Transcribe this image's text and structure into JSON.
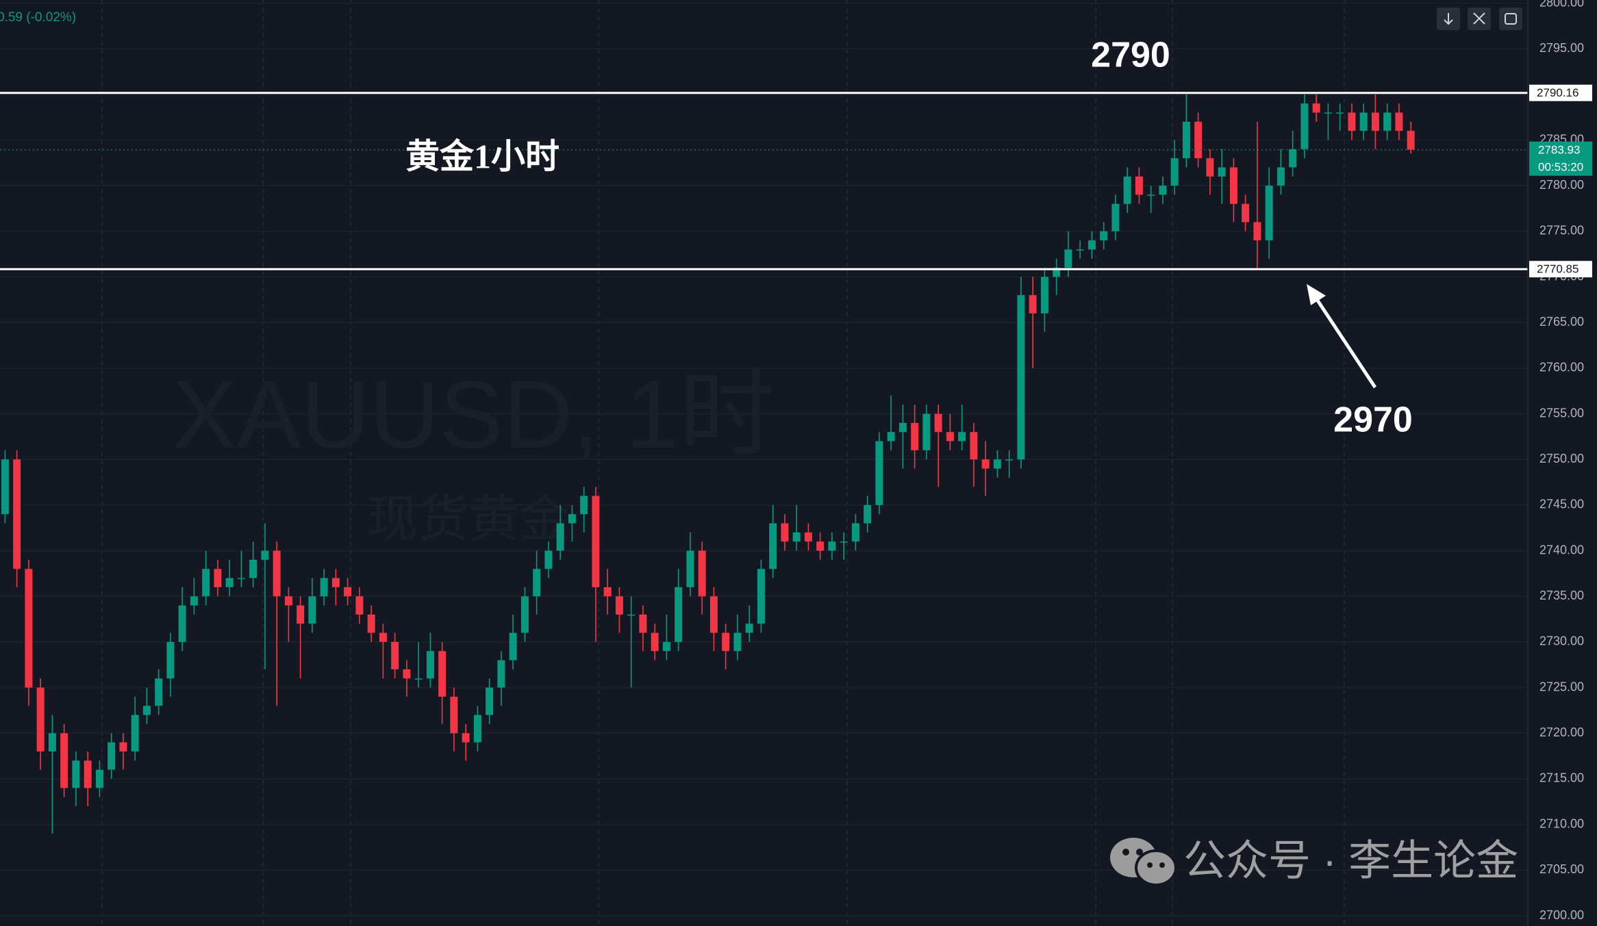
{
  "chart_data": {
    "type": "candlestick",
    "change_text": "0.59 (-0.02%)",
    "symbol_watermark": "XAUUSD, 1时",
    "name_watermark": "现货黄金",
    "annotation_title": "黄金1小时",
    "annotations": [
      "2790",
      "2970"
    ],
    "footer": "公众号 · 李生论金",
    "up_color": "#089981",
    "down_color": "#f23645",
    "ylim": [
      2700,
      2800
    ],
    "yticks": [
      {
        "value": 2700,
        "label": "2700.00"
      },
      {
        "value": 2705,
        "label": "2705.00"
      },
      {
        "value": 2710,
        "label": "2710.00"
      },
      {
        "value": 2715,
        "label": "2715.00"
      },
      {
        "value": 2720,
        "label": "2720.00"
      },
      {
        "value": 2725,
        "label": "2725.00"
      },
      {
        "value": 2730,
        "label": "2730.00"
      },
      {
        "value": 2735,
        "label": "2735.00"
      },
      {
        "value": 2740,
        "label": "2740.00"
      },
      {
        "value": 2745,
        "label": "2745.00"
      },
      {
        "value": 2750,
        "label": "2750.00"
      },
      {
        "value": 2755,
        "label": "2755.00"
      },
      {
        "value": 2760,
        "label": "2760.00"
      },
      {
        "value": 2765,
        "label": "2765.00"
      },
      {
        "value": 2770,
        "label": "2770.00"
      },
      {
        "value": 2775,
        "label": "2775.00"
      },
      {
        "value": 2780,
        "label": "2780.00"
      },
      {
        "value": 2785,
        "label": "2785.00"
      },
      {
        "value": 2790,
        "label": "2790.00"
      },
      {
        "value": 2795,
        "label": "2795.00"
      },
      {
        "value": 2800,
        "label": "2800.00"
      }
    ],
    "hlines": [
      2790.16,
      2770.85
    ],
    "last_price": 2783.93,
    "countdown": "00:53:20",
    "candles": [
      [
        2744,
        2751,
        2743,
        2750
      ],
      [
        2750,
        2751,
        2736,
        2738
      ],
      [
        2738,
        2739,
        2723,
        2725
      ],
      [
        2725,
        2726,
        2716,
        2718
      ],
      [
        2718,
        2722,
        2709,
        2720
      ],
      [
        2720,
        2721,
        2713,
        2714
      ],
      [
        2714,
        2718,
        2712,
        2717
      ],
      [
        2717,
        2718,
        2712,
        2714
      ],
      [
        2714,
        2717,
        2713,
        2716
      ],
      [
        2716,
        2720,
        2715,
        2719
      ],
      [
        2719,
        2720,
        2716,
        2718
      ],
      [
        2718,
        2724,
        2717,
        2722
      ],
      [
        2722,
        2725,
        2721,
        2723
      ],
      [
        2723,
        2727,
        2722,
        2726
      ],
      [
        2726,
        2731,
        2724,
        2730
      ],
      [
        2730,
        2736,
        2729,
        2734
      ],
      [
        2734,
        2737,
        2733,
        2735
      ],
      [
        2735,
        2740,
        2734,
        2738
      ],
      [
        2738,
        2739,
        2735,
        2736
      ],
      [
        2736,
        2739,
        2735,
        2737
      ],
      [
        2737,
        2740,
        2736,
        2737
      ],
      [
        2737,
        2741,
        2736,
        2739
      ],
      [
        2739,
        2743,
        2727,
        2740
      ],
      [
        2740,
        2741,
        2723,
        2735
      ],
      [
        2735,
        2736,
        2730,
        2734
      ],
      [
        2734,
        2735,
        2726,
        2732
      ],
      [
        2732,
        2737,
        2731,
        2735
      ],
      [
        2735,
        2738,
        2734,
        2737
      ],
      [
        2737,
        2738,
        2734,
        2736
      ],
      [
        2736,
        2737,
        2734,
        2735
      ],
      [
        2735,
        2736,
        2732,
        2733
      ],
      [
        2733,
        2734,
        2730,
        2731
      ],
      [
        2731,
        2732,
        2726,
        2730
      ],
      [
        2730,
        2731,
        2726,
        2727
      ],
      [
        2727,
        2728,
        2724,
        2726
      ],
      [
        2726,
        2730,
        2725,
        2726
      ],
      [
        2726,
        2731,
        2725,
        2729
      ],
      [
        2729,
        2730,
        2721,
        2724
      ],
      [
        2724,
        2725,
        2718,
        2720
      ],
      [
        2720,
        2721,
        2717,
        2719
      ],
      [
        2719,
        2723,
        2718,
        2722
      ],
      [
        2722,
        2726,
        2721,
        2725
      ],
      [
        2725,
        2729,
        2723,
        2728
      ],
      [
        2728,
        2733,
        2727,
        2731
      ],
      [
        2731,
        2736,
        2730,
        2735
      ],
      [
        2735,
        2740,
        2733,
        2738
      ],
      [
        2738,
        2741,
        2737,
        2740
      ],
      [
        2740,
        2745,
        2739,
        2743
      ],
      [
        2743,
        2745,
        2741,
        2744
      ],
      [
        2744,
        2747,
        2742,
        2746
      ],
      [
        2746,
        2747,
        2730,
        2736
      ],
      [
        2736,
        2738,
        2733,
        2735
      ],
      [
        2735,
        2736,
        2731,
        2733
      ],
      [
        2733,
        2735,
        2725,
        2733
      ],
      [
        2733,
        2734,
        2729,
        2731
      ],
      [
        2731,
        2732,
        2728,
        2729
      ],
      [
        2729,
        2733,
        2728,
        2730
      ],
      [
        2730,
        2738,
        2729,
        2736
      ],
      [
        2736,
        2742,
        2735,
        2740
      ],
      [
        2740,
        2741,
        2733,
        2735
      ],
      [
        2735,
        2736,
        2729,
        2731
      ],
      [
        2731,
        2732,
        2727,
        2729
      ],
      [
        2729,
        2733,
        2728,
        2731
      ],
      [
        2731,
        2734,
        2730,
        2732
      ],
      [
        2732,
        2739,
        2731,
        2738
      ],
      [
        2738,
        2745,
        2737,
        2743
      ],
      [
        2743,
        2744,
        2740,
        2741
      ],
      [
        2741,
        2745,
        2740,
        2742
      ],
      [
        2742,
        2743,
        2740,
        2741
      ],
      [
        2741,
        2742,
        2739,
        2740
      ],
      [
        2740,
        2742,
        2739,
        2741
      ],
      [
        2741,
        2742,
        2739,
        2741
      ],
      [
        2741,
        2744,
        2740,
        2743
      ],
      [
        2743,
        2746,
        2742,
        2745
      ],
      [
        2745,
        2753,
        2744,
        2752
      ],
      [
        2752,
        2757,
        2751,
        2753
      ],
      [
        2753,
        2756,
        2749,
        2754
      ],
      [
        2754,
        2756,
        2749,
        2751
      ],
      [
        2751,
        2756,
        2750,
        2755
      ],
      [
        2755,
        2756,
        2747,
        2753
      ],
      [
        2753,
        2755,
        2751,
        2752
      ],
      [
        2752,
        2756,
        2751,
        2753
      ],
      [
        2753,
        2754,
        2747,
        2750
      ],
      [
        2750,
        2752,
        2746,
        2749
      ],
      [
        2749,
        2751,
        2748,
        2750
      ],
      [
        2750,
        2751,
        2748,
        2750
      ],
      [
        2750,
        2770,
        2749,
        2768
      ],
      [
        2768,
        2770,
        2760,
        2766
      ],
      [
        2766,
        2771,
        2764,
        2770
      ],
      [
        2770,
        2772,
        2768,
        2771
      ],
      [
        2771,
        2775,
        2770,
        2773
      ],
      [
        2773,
        2774,
        2772,
        2773
      ],
      [
        2773,
        2775,
        2772,
        2774
      ],
      [
        2774,
        2776,
        2773,
        2775
      ],
      [
        2775,
        2779,
        2774,
        2778
      ],
      [
        2778,
        2782,
        2777,
        2781
      ],
      [
        2781,
        2782,
        2778,
        2779
      ],
      [
        2779,
        2780,
        2777,
        2779
      ],
      [
        2779,
        2781,
        2778,
        2780
      ],
      [
        2780,
        2785,
        2779,
        2783
      ],
      [
        2783,
        2790,
        2782,
        2787
      ],
      [
        2787,
        2788,
        2782,
        2783
      ],
      [
        2783,
        2784,
        2779,
        2781
      ],
      [
        2781,
        2784,
        2778,
        2782
      ],
      [
        2782,
        2783,
        2776,
        2778
      ],
      [
        2778,
        2779,
        2775,
        2776
      ],
      [
        2776,
        2787,
        2771,
        2774
      ],
      [
        2774,
        2782,
        2772,
        2780
      ],
      [
        2780,
        2784,
        2779,
        2782
      ],
      [
        2782,
        2786,
        2781,
        2784
      ],
      [
        2784,
        2790,
        2783,
        2789
      ],
      [
        2789,
        2790,
        2787,
        2788
      ],
      [
        2788,
        2789,
        2785,
        2788
      ],
      [
        2788,
        2789,
        2786,
        2788
      ],
      [
        2788,
        2789,
        2785,
        2786
      ],
      [
        2786,
        2789,
        2785,
        2788
      ],
      [
        2788,
        2790,
        2784,
        2786
      ],
      [
        2786,
        2789,
        2785,
        2788
      ],
      [
        2788,
        2789,
        2785,
        2786
      ],
      [
        2786,
        2787,
        2783.5,
        2783.93
      ]
    ]
  }
}
